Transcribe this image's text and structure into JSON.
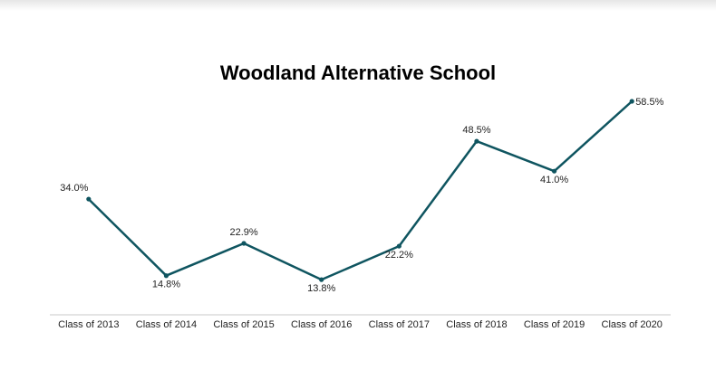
{
  "chart_data": {
    "type": "line",
    "title": "Woodland Alternative School",
    "xlabel": "",
    "ylabel": "",
    "categories": [
      "Class of 2013",
      "Class of 2014",
      "Class of 2015",
      "Class of 2016",
      "Class of 2017",
      "Class of 2018",
      "Class of 2019",
      "Class of 2020"
    ],
    "series": [
      {
        "values": [
          34.0,
          14.8,
          22.9,
          13.8,
          22.2,
          48.5,
          41.0,
          58.5
        ],
        "labels": [
          "34.0%",
          "14.8%",
          "22.9%",
          "13.8%",
          "22.2%",
          "48.5%",
          "41.0%",
          "58.5%"
        ],
        "color": "#0f5560"
      }
    ],
    "grid": false,
    "legend": "none"
  }
}
